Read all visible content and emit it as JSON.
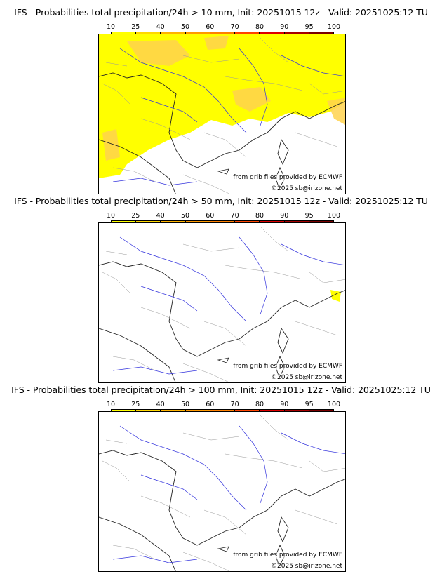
{
  "colorbar": {
    "ticks": [
      "10",
      "25",
      "40",
      "50",
      "60",
      "70",
      "80",
      "90",
      "95",
      "100"
    ],
    "colors": [
      "#ffff00",
      "#ffd700",
      "#ffb300",
      "#ff9900",
      "#ff7f00",
      "#ff4400",
      "#dd0000",
      "#a60000",
      "#7a0000"
    ]
  },
  "panels": [
    {
      "title": "IFS - Probabilities total precipitation/24h > 10 mm, Init: 20251015 12z - Valid: 20251025:12 TU",
      "fill_color": "#ffff00",
      "accent_color": "#ffd24d",
      "credit_source": "from grib files provided by ECMWF",
      "credit_copy": "©2025 sb@irizone.net"
    },
    {
      "title": "IFS - Probabilities total precipitation/24h > 50 mm, Init: 20251015 12z - Valid: 20251025:12 TU",
      "fill_color": "#ffff00",
      "accent_color": "#ffff00",
      "credit_source": "from grib files provided by ECMWF",
      "credit_copy": "©2025 sb@irizone.net"
    },
    {
      "title": "IFS - Probabilities total precipitation/24h > 100 mm, Init: 20251015 12z - Valid: 20251025:12 TU",
      "fill_color": "#ffffff",
      "accent_color": "#ffffff",
      "credit_source": "from grib files provided by ECMWF",
      "credit_copy": "©2025 sb@irizone.net"
    }
  ]
}
